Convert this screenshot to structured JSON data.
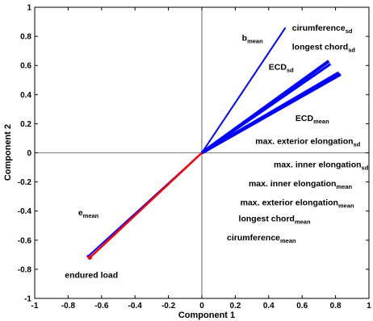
{
  "chart_data": {
    "type": "line",
    "title": "",
    "xlabel": "Component 1",
    "ylabel": "Component 2",
    "xlim": [
      -1,
      1
    ],
    "ylim": [
      -1,
      1
    ],
    "xticks": [
      "-1",
      "-0.8",
      "-0.6",
      "-0.4",
      "-0.2",
      "0",
      "0.2",
      "0.4",
      "0.6",
      "0.8",
      "1"
    ],
    "yticks": [
      "1",
      "0.8",
      "0.6",
      "0.4",
      "0.2",
      "0",
      "-0.2",
      "-0.4",
      "-0.6",
      "-0.8",
      "-1"
    ],
    "grid": false,
    "vectors": [
      {
        "id": "b",
        "color": "#0000ff",
        "width": 2,
        "x": 0.5,
        "y": 0.86
      },
      {
        "id": "circ_sd",
        "color": "#0000ff",
        "width": 4,
        "x": 0.76,
        "y": 0.63
      },
      {
        "id": "chord_sd",
        "color": "#0000ff",
        "width": 3,
        "x": 0.77,
        "y": 0.61
      },
      {
        "id": "ecd_sd",
        "color": "#0000ff",
        "width": 4,
        "x": 0.83,
        "y": 0.54
      },
      {
        "id": "ecd_mean",
        "color": "#0000ff",
        "width": 4,
        "x": 0.82,
        "y": 0.55
      },
      {
        "id": "e",
        "color": "#0000ff",
        "width": 2,
        "x": -0.68,
        "y": -0.71
      },
      {
        "id": "load",
        "color": "#ff0000",
        "width": 2.5,
        "x": -0.67,
        "y": -0.72
      }
    ],
    "annotations": [
      {
        "id": "b",
        "main": "b",
        "sub": "mean",
        "x": 0.24,
        "y": 0.77
      },
      {
        "id": "circ_sd",
        "main": "cirumference",
        "sub": "sd",
        "x": 0.54,
        "y": 0.84
      },
      {
        "id": "chord_sd",
        "main": "longest chord",
        "sub": "sd",
        "x": 0.54,
        "y": 0.71
      },
      {
        "id": "ecd_sd",
        "main": "ECD",
        "sub": "sd",
        "x": 0.4,
        "y": 0.57
      },
      {
        "id": "ecd_mean",
        "main": "ECD",
        "sub": "mean",
        "x": 0.56,
        "y": 0.22
      },
      {
        "id": "ext_sd",
        "main": "max. exterior elongation",
        "sub": "sd",
        "x": 0.32,
        "y": 0.06
      },
      {
        "id": "inner_sd",
        "main": "max. inner elongation",
        "sub": "sd",
        "x": 0.43,
        "y": -0.1
      },
      {
        "id": "inner_mean",
        "main": "max. inner elongation",
        "sub": "mean",
        "x": 0.28,
        "y": -0.23
      },
      {
        "id": "ext_mean",
        "main": "max. exterior elongation",
        "sub": "mean",
        "x": 0.23,
        "y": -0.36
      },
      {
        "id": "chord_mean",
        "main": "longest chord",
        "sub": "mean",
        "x": 0.22,
        "y": -0.47
      },
      {
        "id": "circ_mean",
        "main": "cirumference",
        "sub": "mean",
        "x": 0.15,
        "y": -0.6
      },
      {
        "id": "e",
        "main": "e",
        "sub": "mean",
        "x": -0.74,
        "y": -0.43
      },
      {
        "id": "load",
        "main": "endured load",
        "sub": "",
        "x": -0.82,
        "y": -0.86
      }
    ]
  }
}
